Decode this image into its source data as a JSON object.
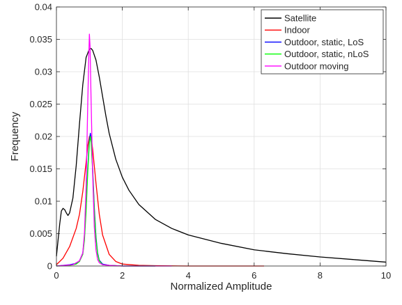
{
  "chart_data": {
    "type": "line",
    "title": "",
    "xlabel": "Normalized Amplitude",
    "ylabel": "Frequency",
    "xlim": [
      0,
      10
    ],
    "ylim": [
      0,
      0.04
    ],
    "x_ticks": [
      0,
      2,
      4,
      6,
      8,
      10
    ],
    "x_tick_labels": [
      "0",
      "2",
      "4",
      "6",
      "8",
      "10"
    ],
    "y_ticks": [
      0,
      0.005,
      0.01,
      0.015,
      0.02,
      0.025,
      0.03,
      0.035,
      0.04
    ],
    "y_tick_labels": [
      "0",
      "0.005",
      "0.01",
      "0.015",
      "0.02",
      "0.025",
      "0.03",
      "0.035",
      "0.04"
    ],
    "grid": true,
    "legend_position": "top-right",
    "series": [
      {
        "name": "Satellite",
        "color": "#000000",
        "x": [
          0,
          0.05,
          0.1,
          0.15,
          0.2,
          0.25,
          0.3,
          0.35,
          0.4,
          0.5,
          0.6,
          0.7,
          0.8,
          0.9,
          1.0,
          1.05,
          1.1,
          1.2,
          1.3,
          1.4,
          1.5,
          1.6,
          1.8,
          2.0,
          2.2,
          2.5,
          3.0,
          3.5,
          4.0,
          5.0,
          6.0,
          7.0,
          8.0,
          9.0,
          10.0
        ],
        "y": [
          0.0015,
          0.004,
          0.0065,
          0.0085,
          0.0089,
          0.0087,
          0.0082,
          0.0078,
          0.0082,
          0.0105,
          0.0155,
          0.022,
          0.028,
          0.0322,
          0.0335,
          0.0336,
          0.0333,
          0.0318,
          0.0292,
          0.0262,
          0.0232,
          0.0205,
          0.0165,
          0.0137,
          0.0117,
          0.0095,
          0.0072,
          0.0058,
          0.0048,
          0.0035,
          0.0025,
          0.0019,
          0.0014,
          0.001,
          0.0006
        ]
      },
      {
        "name": "Indoor",
        "color": "#ff0000",
        "x": [
          0,
          0.2,
          0.4,
          0.6,
          0.7,
          0.8,
          0.9,
          0.95,
          1.0,
          1.05,
          1.1,
          1.2,
          1.3,
          1.4,
          1.6,
          1.8,
          2.0,
          2.5,
          3.0,
          4.0,
          5.0,
          6.3
        ],
        "y": [
          0.0002,
          0.0012,
          0.003,
          0.0058,
          0.008,
          0.0115,
          0.016,
          0.0185,
          0.02,
          0.02,
          0.018,
          0.0128,
          0.008,
          0.0048,
          0.0018,
          0.0007,
          0.0003,
          0.0001,
          5e-05,
          0,
          0,
          0
        ]
      },
      {
        "name": "Outdoor, static, LoS",
        "color": "#0000ff",
        "x": [
          0,
          0.4,
          0.6,
          0.7,
          0.8,
          0.85,
          0.9,
          0.95,
          1.0,
          1.03,
          1.05,
          1.1,
          1.15,
          1.2,
          1.25,
          1.3,
          1.4,
          1.6,
          2.0,
          3.0
        ],
        "y": [
          0,
          0.0002,
          0.0004,
          0.0008,
          0.002,
          0.0045,
          0.009,
          0.015,
          0.0195,
          0.0205,
          0.0198,
          0.015,
          0.009,
          0.0045,
          0.002,
          0.0009,
          0.0003,
          0.0001,
          0,
          0
        ]
      },
      {
        "name": "Outdoor, static, nLoS",
        "color": "#00ff00",
        "x": [
          0,
          0.4,
          0.6,
          0.7,
          0.8,
          0.85,
          0.9,
          0.95,
          1.0,
          1.03,
          1.05,
          1.1,
          1.15,
          1.2,
          1.25,
          1.3,
          1.4,
          1.6,
          2.0,
          3.0
        ],
        "y": [
          0,
          0.0001,
          0.0003,
          0.0007,
          0.0018,
          0.004,
          0.0085,
          0.0145,
          0.019,
          0.02,
          0.0193,
          0.0145,
          0.0085,
          0.0042,
          0.0018,
          0.0008,
          0.0002,
          0.0001,
          0,
          0
        ]
      },
      {
        "name": "Outdoor moving",
        "color": "#ff00ff",
        "x": [
          0,
          0.5,
          0.7,
          0.8,
          0.85,
          0.9,
          0.95,
          0.98,
          1.0,
          1.02,
          1.05,
          1.1,
          1.15,
          1.2,
          1.25,
          1.3,
          1.4,
          1.6,
          2.0,
          3.0,
          3.5
        ],
        "y": [
          0,
          0.0002,
          0.0008,
          0.002,
          0.005,
          0.012,
          0.025,
          0.032,
          0.0358,
          0.034,
          0.026,
          0.014,
          0.006,
          0.0025,
          0.001,
          0.0005,
          0.0002,
          0.0001,
          0,
          0,
          0
        ]
      }
    ]
  }
}
